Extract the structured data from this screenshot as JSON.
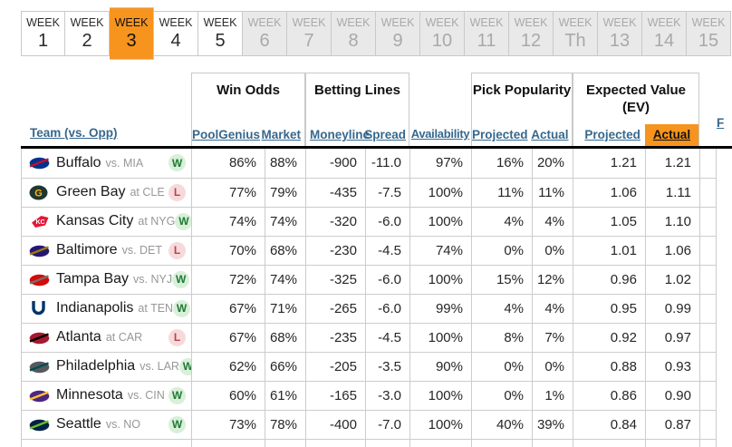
{
  "weeks": [
    {
      "label": "WEEK",
      "num": "1",
      "state": "default"
    },
    {
      "label": "WEEK",
      "num": "2",
      "state": "default"
    },
    {
      "label": "WEEK",
      "num": "3",
      "state": "active"
    },
    {
      "label": "WEEK",
      "num": "4",
      "state": "default"
    },
    {
      "label": "WEEK",
      "num": "5",
      "state": "default"
    },
    {
      "label": "WEEK",
      "num": "6",
      "state": "disabled"
    },
    {
      "label": "WEEK",
      "num": "7",
      "state": "disabled"
    },
    {
      "label": "WEEK",
      "num": "8",
      "state": "disabled"
    },
    {
      "label": "WEEK",
      "num": "9",
      "state": "disabled"
    },
    {
      "label": "WEEK",
      "num": "10",
      "state": "disabled"
    },
    {
      "label": "WEEK",
      "num": "11",
      "state": "disabled"
    },
    {
      "label": "WEEK",
      "num": "12",
      "state": "disabled"
    },
    {
      "label": "WEEK",
      "num": "Th",
      "state": "disabled"
    },
    {
      "label": "WEEK",
      "num": "13",
      "state": "disabled"
    },
    {
      "label": "WEEK",
      "num": "14",
      "state": "disabled"
    },
    {
      "label": "WEEK",
      "num": "15",
      "state": "disabled"
    }
  ],
  "header": {
    "team": "Team (vs. Opp)",
    "groups": {
      "win_odds": "Win Odds",
      "betting_lines": "Betting Lines",
      "pick_popularity": "Pick Popularity",
      "expected_value": "Expected Value (EV)"
    },
    "cols": {
      "poolgenius": "PoolGenius",
      "market": "Market",
      "moneyline": "Moneyline",
      "spread": "Spread",
      "availability": "Availability",
      "pp_projected": "Projected",
      "pp_actual": "Actual",
      "ev_projected": "Projected",
      "ev_actual": "Actual"
    },
    "partial_link": "F"
  },
  "colors": {
    "accent_orange": "#F7941E",
    "link_blue": "#36688E",
    "win_green": "#1F7A33",
    "win_badge_bg": "#D9EFD9",
    "loss_red": "#BF4045",
    "loss_badge_bg": "#F6DADB"
  },
  "rows": [
    {
      "team": "Buffalo",
      "opp": "vs. MIA",
      "result": "W",
      "poolgenius": "86%",
      "market": "88%",
      "moneyline": "-900",
      "spread": "-11.0",
      "availability": "97%",
      "pp_projected": "16%",
      "pp_actual": "20%",
      "ev_projected": "1.21",
      "ev_actual": "1.21",
      "logo": {
        "shape": "swoosh",
        "primary": "#00338D",
        "accent": "#C60C30"
      }
    },
    {
      "team": "Green Bay",
      "opp": "at CLE",
      "result": "L",
      "poolgenius": "77%",
      "market": "79%",
      "moneyline": "-435",
      "spread": "-7.5",
      "availability": "100%",
      "pp_projected": "11%",
      "pp_actual": "11%",
      "ev_projected": "1.06",
      "ev_actual": "1.11",
      "logo": {
        "shape": "circle-letter",
        "primary": "#203731",
        "accent": "#FFB612",
        "letter": "G"
      }
    },
    {
      "team": "Kansas City",
      "opp": "at NYG",
      "result": "W",
      "poolgenius": "74%",
      "market": "74%",
      "moneyline": "-320",
      "spread": "-6.0",
      "availability": "100%",
      "pp_projected": "4%",
      "pp_actual": "4%",
      "ev_projected": "1.05",
      "ev_actual": "1.10",
      "logo": {
        "shape": "arrow",
        "primary": "#E31837",
        "accent": "#FFFFFF",
        "letter": "KC"
      }
    },
    {
      "team": "Baltimore",
      "opp": "vs. DET",
      "result": "L",
      "poolgenius": "70%",
      "market": "68%",
      "moneyline": "-230",
      "spread": "-4.5",
      "availability": "74%",
      "pp_projected": "0%",
      "pp_actual": "0%",
      "ev_projected": "1.01",
      "ev_actual": "1.06",
      "logo": {
        "shape": "swoosh",
        "primary": "#241773",
        "accent": "#9E7C0C"
      }
    },
    {
      "team": "Tampa Bay",
      "opp": "vs. NYJ",
      "result": "W",
      "poolgenius": "72%",
      "market": "74%",
      "moneyline": "-325",
      "spread": "-6.0",
      "availability": "100%",
      "pp_projected": "15%",
      "pp_actual": "12%",
      "ev_projected": "0.96",
      "ev_actual": "1.02",
      "logo": {
        "shape": "swoosh",
        "primary": "#D50A0A",
        "accent": "#7a6f66"
      }
    },
    {
      "team": "Indianapolis",
      "opp": "at TEN",
      "result": "W",
      "poolgenius": "67%",
      "market": "71%",
      "moneyline": "-265",
      "spread": "-6.0",
      "availability": "99%",
      "pp_projected": "4%",
      "pp_actual": "4%",
      "ev_projected": "0.95",
      "ev_actual": "0.99",
      "logo": {
        "shape": "horseshoe",
        "primary": "#013369"
      }
    },
    {
      "team": "Atlanta",
      "opp": "at CAR",
      "result": "L",
      "poolgenius": "67%",
      "market": "68%",
      "moneyline": "-235",
      "spread": "-4.5",
      "availability": "100%",
      "pp_projected": "8%",
      "pp_actual": "7%",
      "ev_projected": "0.92",
      "ev_actual": "0.97",
      "logo": {
        "shape": "swoosh",
        "primary": "#A71930",
        "accent": "#000000"
      }
    },
    {
      "team": "Philadelphia",
      "opp": "vs. LAR",
      "result": "W",
      "poolgenius": "62%",
      "market": "66%",
      "moneyline": "-205",
      "spread": "-3.5",
      "availability": "90%",
      "pp_projected": "0%",
      "pp_actual": "0%",
      "ev_projected": "0.88",
      "ev_actual": "0.93",
      "logo": {
        "shape": "swoosh",
        "primary": "#565A5C",
        "accent": "#004C54"
      }
    },
    {
      "team": "Minnesota",
      "opp": "vs. CIN",
      "result": "W",
      "poolgenius": "60%",
      "market": "61%",
      "moneyline": "-165",
      "spread": "-3.0",
      "availability": "100%",
      "pp_projected": "0%",
      "pp_actual": "1%",
      "ev_projected": "0.86",
      "ev_actual": "0.90",
      "logo": {
        "shape": "swoosh",
        "primary": "#4F2683",
        "accent": "#FFC62F"
      }
    },
    {
      "team": "Seattle",
      "opp": "vs. NO",
      "result": "W",
      "poolgenius": "73%",
      "market": "78%",
      "moneyline": "-400",
      "spread": "-7.0",
      "availability": "100%",
      "pp_projected": "40%",
      "pp_actual": "39%",
      "ev_projected": "0.84",
      "ev_actual": "0.87",
      "logo": {
        "shape": "swoosh",
        "primary": "#002244",
        "accent": "#69BE28"
      }
    }
  ]
}
